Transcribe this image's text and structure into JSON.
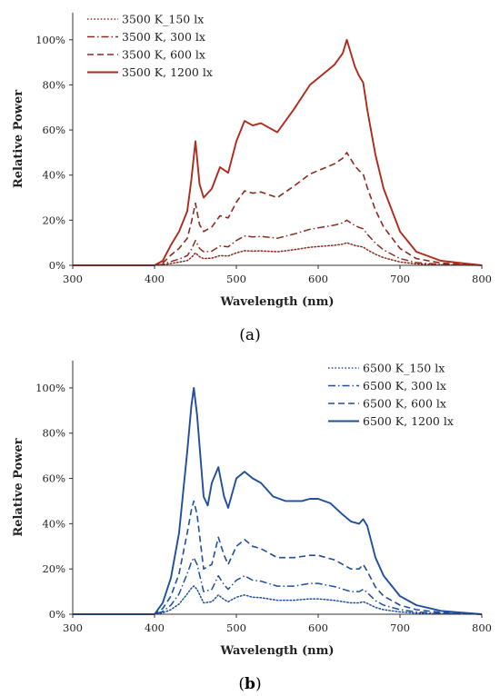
{
  "chart_data": [
    {
      "type": "line",
      "panel_label": "a",
      "xlabel": "Wavelength (nm)",
      "ylabel": "Relative Power",
      "xlim": [
        300,
        800
      ],
      "ylim": [
        0,
        112
      ],
      "x_ticks": [
        "300",
        "400",
        "500",
        "600",
        "700",
        "800"
      ],
      "y_ticks": [
        "0%",
        "20%",
        "40%",
        "60%",
        "80%",
        "100%"
      ],
      "legend_position": "top-left",
      "grid": false,
      "series": [
        {
          "name": "3500 K_150 lx",
          "color": "#8b2a1e",
          "dash": "dotted",
          "points": [
            [
              300,
              0
            ],
            [
              400,
              0
            ],
            [
              410,
              0.2
            ],
            [
              420,
              0.8
            ],
            [
              430,
              1.4
            ],
            [
              440,
              2.1
            ],
            [
              445,
              3.5
            ],
            [
              450,
              5.5
            ],
            [
              455,
              3.8
            ],
            [
              460,
              3.0
            ],
            [
              470,
              3.2
            ],
            [
              480,
              4.3
            ],
            [
              490,
              4.1
            ],
            [
              500,
              5.5
            ],
            [
              510,
              6.5
            ],
            [
              520,
              6.3
            ],
            [
              530,
              6.4
            ],
            [
              550,
              6.0
            ],
            [
              570,
              6.9
            ],
            [
              590,
              8.0
            ],
            [
              600,
              8.3
            ],
            [
              620,
              8.9
            ],
            [
              630,
              9.4
            ],
            [
              635,
              10.0
            ],
            [
              645,
              8.8
            ],
            [
              650,
              8.4
            ],
            [
              655,
              8.1
            ],
            [
              660,
              6.9
            ],
            [
              670,
              4.9
            ],
            [
              680,
              3.4
            ],
            [
              700,
              1.5
            ],
            [
              720,
              0.6
            ],
            [
              750,
              0.2
            ],
            [
              800,
              0
            ]
          ]
        },
        {
          "name": "3500 K, 300 lx",
          "color": "#8b2a1e",
          "dash": "dashdot",
          "points": [
            [
              300,
              0
            ],
            [
              400,
              0
            ],
            [
              410,
              0.4
            ],
            [
              420,
              1.7
            ],
            [
              430,
              2.8
            ],
            [
              440,
              4.3
            ],
            [
              445,
              7
            ],
            [
              450,
              11
            ],
            [
              455,
              7.5
            ],
            [
              460,
              6
            ],
            [
              470,
              6.3
            ],
            [
              480,
              8.6
            ],
            [
              490,
              8.2
            ],
            [
              500,
              11
            ],
            [
              510,
              13
            ],
            [
              520,
              12.6
            ],
            [
              530,
              12.8
            ],
            [
              550,
              12
            ],
            [
              570,
              13.8
            ],
            [
              590,
              16
            ],
            [
              600,
              16.6
            ],
            [
              620,
              17.8
            ],
            [
              630,
              18.8
            ],
            [
              635,
              20
            ],
            [
              645,
              17.6
            ],
            [
              650,
              16.8
            ],
            [
              655,
              16.2
            ],
            [
              660,
              13.8
            ],
            [
              670,
              9.8
            ],
            [
              680,
              6.8
            ],
            [
              700,
              3
            ],
            [
              720,
              1.2
            ],
            [
              750,
              0.4
            ],
            [
              800,
              0
            ]
          ]
        },
        {
          "name": "3500 K, 600 lx",
          "color": "#8b2a1e",
          "dash": "dashed",
          "points": [
            [
              300,
              0
            ],
            [
              400,
              0
            ],
            [
              410,
              1
            ],
            [
              420,
              4.5
            ],
            [
              430,
              7.5
            ],
            [
              440,
              12
            ],
            [
              445,
              19
            ],
            [
              450,
              27.5
            ],
            [
              455,
              18
            ],
            [
              460,
              15
            ],
            [
              470,
              17
            ],
            [
              480,
              22
            ],
            [
              490,
              21
            ],
            [
              500,
              28
            ],
            [
              510,
              33
            ],
            [
              520,
              32
            ],
            [
              530,
              32.5
            ],
            [
              550,
              30
            ],
            [
              570,
              35
            ],
            [
              590,
              40.5
            ],
            [
              600,
              42
            ],
            [
              620,
              45
            ],
            [
              630,
              47.5
            ],
            [
              635,
              50
            ],
            [
              645,
              44
            ],
            [
              650,
              42
            ],
            [
              655,
              40.5
            ],
            [
              660,
              34.5
            ],
            [
              670,
              24.5
            ],
            [
              680,
              17
            ],
            [
              700,
              7.5
            ],
            [
              720,
              3
            ],
            [
              750,
              1
            ],
            [
              800,
              0
            ]
          ]
        },
        {
          "name": "3500 K, 1200 lx",
          "color": "#b02a1c",
          "dash": "solid",
          "points": [
            [
              300,
              0
            ],
            [
              400,
              0
            ],
            [
              410,
              2
            ],
            [
              420,
              9
            ],
            [
              430,
              15
            ],
            [
              440,
              24
            ],
            [
              445,
              38
            ],
            [
              450,
              55
            ],
            [
              455,
              36
            ],
            [
              460,
              30
            ],
            [
              470,
              34
            ],
            [
              480,
              43.5
            ],
            [
              490,
              41
            ],
            [
              500,
              55
            ],
            [
              510,
              64
            ],
            [
              520,
              62
            ],
            [
              530,
              63
            ],
            [
              550,
              59
            ],
            [
              570,
              69
            ],
            [
              590,
              80
            ],
            [
              600,
              83
            ],
            [
              620,
              89
            ],
            [
              630,
              94
            ],
            [
              635,
              100
            ],
            [
              645,
              88
            ],
            [
              650,
              84
            ],
            [
              655,
              81
            ],
            [
              660,
              69
            ],
            [
              670,
              49
            ],
            [
              680,
              34
            ],
            [
              700,
              15
            ],
            [
              720,
              6
            ],
            [
              750,
              2
            ],
            [
              800,
              0
            ]
          ]
        }
      ]
    },
    {
      "type": "line",
      "panel_label": "b",
      "xlabel": "Wavelength (nm)",
      "ylabel": "Relative Power",
      "xlim": [
        300,
        800
      ],
      "ylim": [
        0,
        112
      ],
      "x_ticks": [
        "300",
        "400",
        "500",
        "600",
        "700",
        "800"
      ],
      "y_ticks": [
        "0%",
        "20%",
        "40%",
        "60%",
        "80%",
        "100%"
      ],
      "legend_position": "top-right",
      "grid": false,
      "series": [
        {
          "name": "6500 K_150 lx",
          "color": "#1f4e9c",
          "dash": "dotted",
          "points": [
            [
              300,
              0
            ],
            [
              400,
              0
            ],
            [
              410,
              0.6
            ],
            [
              420,
              2
            ],
            [
              430,
              4.5
            ],
            [
              440,
              9
            ],
            [
              445,
              11.5
            ],
            [
              448,
              12.5
            ],
            [
              452,
              11
            ],
            [
              460,
              5
            ],
            [
              470,
              5.5
            ],
            [
              478,
              8.5
            ],
            [
              485,
              6.5
            ],
            [
              490,
              5.5
            ],
            [
              500,
              7.5
            ],
            [
              510,
              8.5
            ],
            [
              520,
              7.5
            ],
            [
              530,
              7.3
            ],
            [
              550,
              6.2
            ],
            [
              570,
              6.2
            ],
            [
              590,
              6.8
            ],
            [
              600,
              6.8
            ],
            [
              620,
              6.1
            ],
            [
              640,
              5
            ],
            [
              650,
              5
            ],
            [
              655,
              5.5
            ],
            [
              660,
              4.8
            ],
            [
              670,
              3
            ],
            [
              680,
              2
            ],
            [
              700,
              1
            ],
            [
              720,
              0.5
            ],
            [
              750,
              0.2
            ],
            [
              800,
              0
            ]
          ]
        },
        {
          "name": "6500 K, 300 lx",
          "color": "#1f4e9c",
          "dash": "dashdot",
          "points": [
            [
              300,
              0
            ],
            [
              400,
              0
            ],
            [
              410,
              1.2
            ],
            [
              420,
              4
            ],
            [
              430,
              9
            ],
            [
              440,
              18
            ],
            [
              445,
              23
            ],
            [
              448,
              25
            ],
            [
              452,
              22
            ],
            [
              460,
              10
            ],
            [
              470,
              11
            ],
            [
              478,
              17
            ],
            [
              485,
              13
            ],
            [
              490,
              11
            ],
            [
              500,
              15
            ],
            [
              510,
              17
            ],
            [
              520,
              15
            ],
            [
              530,
              14.6
            ],
            [
              550,
              12.4
            ],
            [
              570,
              12.4
            ],
            [
              590,
              13.6
            ],
            [
              600,
              13.6
            ],
            [
              620,
              12.2
            ],
            [
              640,
              10
            ],
            [
              650,
              10
            ],
            [
              655,
              11
            ],
            [
              660,
              9.6
            ],
            [
              670,
              6
            ],
            [
              680,
              4
            ],
            [
              700,
              2
            ],
            [
              720,
              1
            ],
            [
              750,
              0.4
            ],
            [
              800,
              0
            ]
          ]
        },
        {
          "name": "6500 K, 600 lx",
          "color": "#1f4e9c",
          "dash": "dashed",
          "points": [
            [
              300,
              0
            ],
            [
              400,
              0
            ],
            [
              410,
              2.5
            ],
            [
              420,
              8
            ],
            [
              430,
              18
            ],
            [
              440,
              36
            ],
            [
              445,
              46
            ],
            [
              448,
              50
            ],
            [
              452,
              44
            ],
            [
              460,
              20
            ],
            [
              470,
              22
            ],
            [
              478,
              34
            ],
            [
              485,
              26
            ],
            [
              490,
              22
            ],
            [
              500,
              30
            ],
            [
              510,
              33
            ],
            [
              520,
              30
            ],
            [
              530,
              29
            ],
            [
              550,
              25
            ],
            [
              570,
              25
            ],
            [
              590,
              26
            ],
            [
              600,
              26
            ],
            [
              620,
              24
            ],
            [
              640,
              20
            ],
            [
              650,
              20
            ],
            [
              655,
              22
            ],
            [
              660,
              19
            ],
            [
              670,
              12
            ],
            [
              680,
              8
            ],
            [
              700,
              4
            ],
            [
              720,
              2
            ],
            [
              750,
              0.8
            ],
            [
              800,
              0
            ]
          ]
        },
        {
          "name": "6500 K, 1200 lx",
          "color": "#1f4e9c",
          "dash": "solid",
          "points": [
            [
              300,
              0
            ],
            [
              400,
              0
            ],
            [
              410,
              5
            ],
            [
              420,
              16
            ],
            [
              430,
              36
            ],
            [
              440,
              72
            ],
            [
              445,
              92
            ],
            [
              448,
              100
            ],
            [
              452,
              88
            ],
            [
              460,
              52
            ],
            [
              465,
              48
            ],
            [
              470,
              58
            ],
            [
              478,
              65
            ],
            [
              485,
              52
            ],
            [
              490,
              47
            ],
            [
              500,
              60
            ],
            [
              510,
              63
            ],
            [
              520,
              60
            ],
            [
              530,
              58
            ],
            [
              545,
              52
            ],
            [
              560,
              50
            ],
            [
              580,
              50
            ],
            [
              590,
              51
            ],
            [
              600,
              51
            ],
            [
              615,
              49
            ],
            [
              630,
              44
            ],
            [
              640,
              41
            ],
            [
              650,
              40
            ],
            [
              655,
              42
            ],
            [
              660,
              39
            ],
            [
              670,
              25
            ],
            [
              680,
              17
            ],
            [
              700,
              8
            ],
            [
              720,
              4
            ],
            [
              750,
              1.5
            ],
            [
              800,
              0
            ]
          ]
        }
      ]
    }
  ]
}
